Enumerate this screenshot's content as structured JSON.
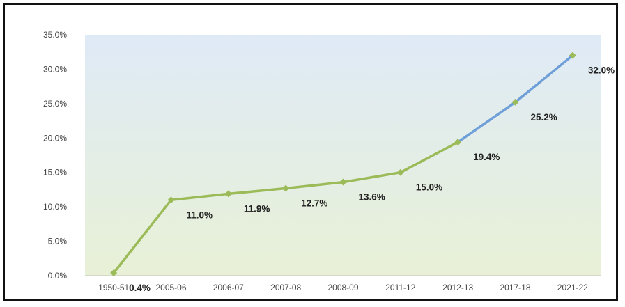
{
  "chart_data": {
    "type": "line",
    "title": "",
    "xlabel": "",
    "ylabel": "",
    "categories": [
      "1950-51",
      "2005-06",
      "2006-07",
      "2007-08",
      "2008-09",
      "2011-12",
      "2012-13",
      "2017-18",
      "2021-22"
    ],
    "values": [
      0.4,
      11.0,
      11.9,
      12.7,
      13.6,
      15.0,
      19.4,
      25.2,
      32.0
    ],
    "data_labels": [
      "0.4%",
      "11.0%",
      "11.9%",
      "12.7%",
      "13.6%",
      "15.0%",
      "19.4%",
      "25.2%",
      "32.0%"
    ],
    "ylim": [
      0,
      35
    ],
    "yticks": [
      0,
      5,
      10,
      15,
      20,
      25,
      30,
      35
    ],
    "ytick_labels": [
      "0.0%",
      "5.0%",
      "10.0%",
      "15.0%",
      "20.0%",
      "25.0%",
      "30.0%",
      "35.0%"
    ],
    "grid": false,
    "legend": "none",
    "segments": [
      {
        "from_index": 0,
        "to_index": 6,
        "color": "#9bbb59",
        "style": "actual"
      },
      {
        "from_index": 6,
        "to_index": 8,
        "color": "#6f9fd8",
        "style": "projected"
      }
    ],
    "marker_color": "#9bbb59",
    "background_gradient": [
      "#dfeaf7",
      "#e8f1d6"
    ]
  }
}
